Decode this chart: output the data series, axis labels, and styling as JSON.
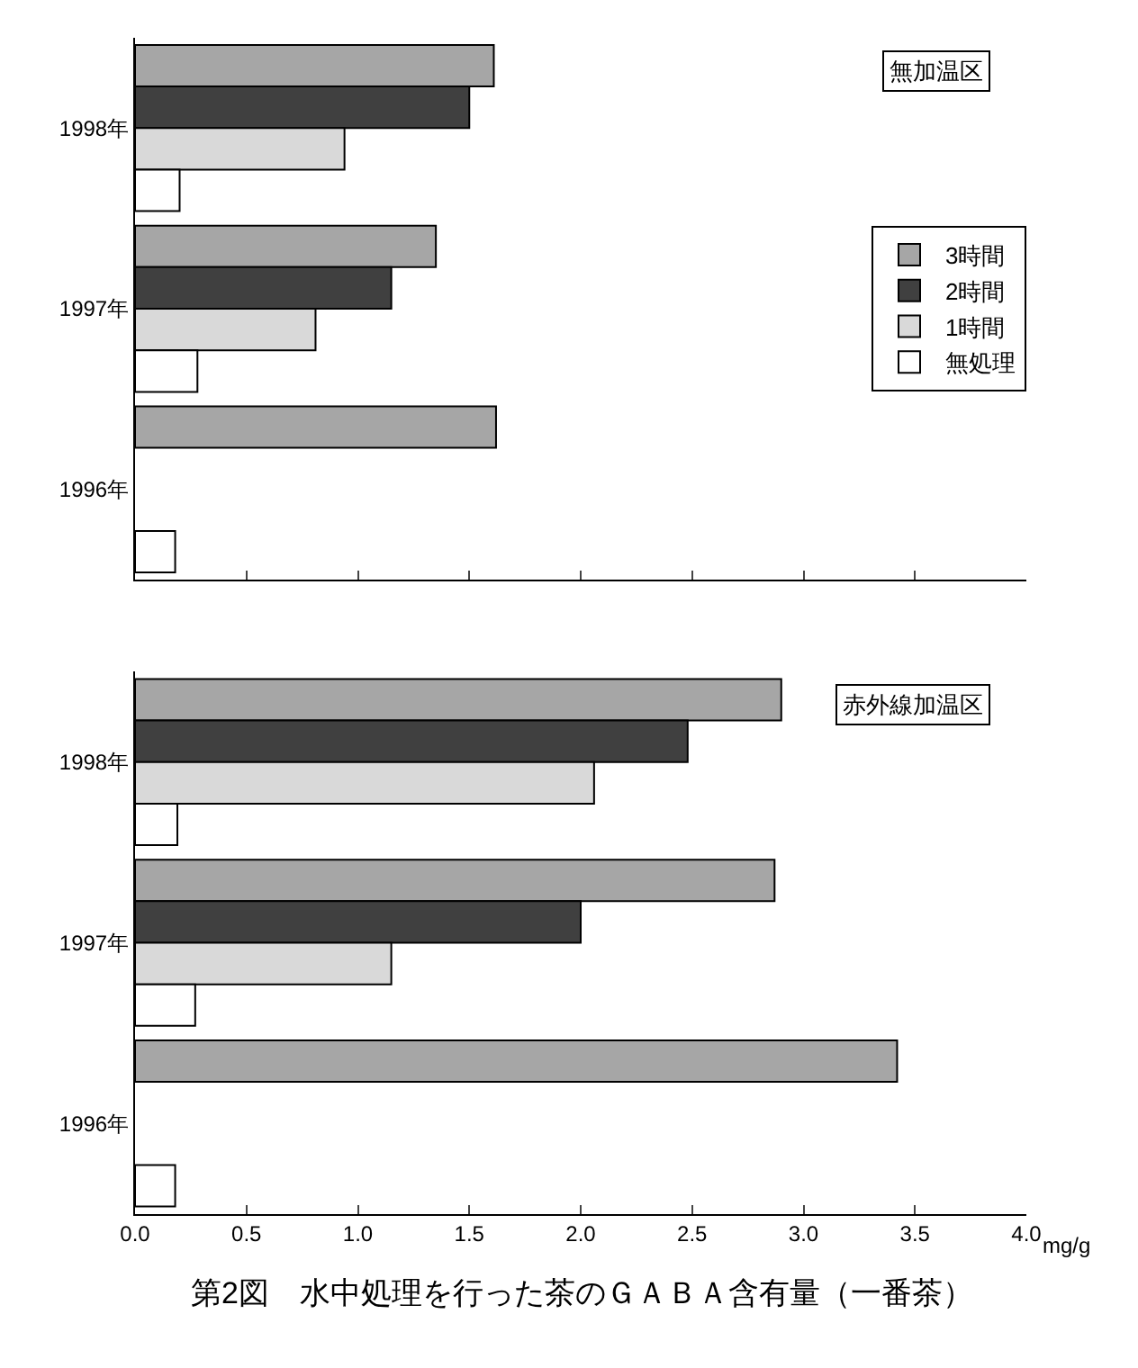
{
  "chart_data": [
    {
      "type": "bar",
      "orientation": "horizontal",
      "categories": [
        "1998年",
        "1997年",
        "1996年"
      ],
      "series": [
        {
          "name": "3時間",
          "color": "#a6a6a6",
          "values": [
            1.61,
            1.35,
            1.62
          ]
        },
        {
          "name": "2時間",
          "color": "#404040",
          "values": [
            1.5,
            1.15,
            null
          ]
        },
        {
          "name": "1時間",
          "color": "#d9d9d9",
          "values": [
            0.94,
            0.81,
            null
          ]
        },
        {
          "name": "無処理",
          "color": "#ffffff",
          "values": [
            0.2,
            0.28,
            0.18
          ]
        }
      ],
      "xlim": [
        0,
        4
      ],
      "xticks": [
        {
          "value": 0,
          "label": null
        },
        {
          "value": 0.5,
          "label": null
        },
        {
          "value": 1,
          "label": null
        },
        {
          "value": 1.5,
          "label": null
        },
        {
          "value": 2,
          "label": null
        },
        {
          "value": 2.5,
          "label": null
        },
        {
          "value": 3,
          "label": null
        },
        {
          "value": 3.5,
          "label": null
        },
        {
          "value": 4,
          "label": null
        }
      ],
      "tick_labels": "y",
      "legend": "right",
      "annotations": [
        "無加温区"
      ]
    },
    {
      "type": "bar",
      "orientation": "horizontal",
      "categories": [
        "1998年",
        "1997年",
        "1996年"
      ],
      "series": [
        {
          "color": "#a6a6a6",
          "values": [
            2.9,
            2.87,
            3.42
          ]
        },
        {
          "color": "#404040",
          "values": [
            2.48,
            2.0,
            null
          ]
        },
        {
          "color": "#d9d9d9",
          "values": [
            2.06,
            1.15,
            null
          ]
        },
        {
          "color": "#ffffff",
          "values": [
            0.19,
            0.27,
            0.18
          ]
        }
      ],
      "xlim": [
        0,
        4
      ],
      "xticks": [
        {
          "value": 0,
          "label": "0.0"
        },
        {
          "value": 0.5,
          "label": "0.5"
        },
        {
          "value": 1,
          "label": "1.0"
        },
        {
          "value": 1.5,
          "label": "1.5"
        },
        {
          "value": 2,
          "label": "2.0"
        },
        {
          "value": 2.5,
          "label": "2.5"
        },
        {
          "value": 3,
          "label": "3.0"
        },
        {
          "value": 3.5,
          "label": "3.5"
        },
        {
          "value": 4,
          "label": "4.0"
        }
      ],
      "xlabel": "mg/g",
      "legend": false,
      "annotations": [
        "赤外線加温区",
        "第2図　水中処理を行った茶のＧＡＢＡ含有量（一番茶）"
      ]
    }
  ]
}
